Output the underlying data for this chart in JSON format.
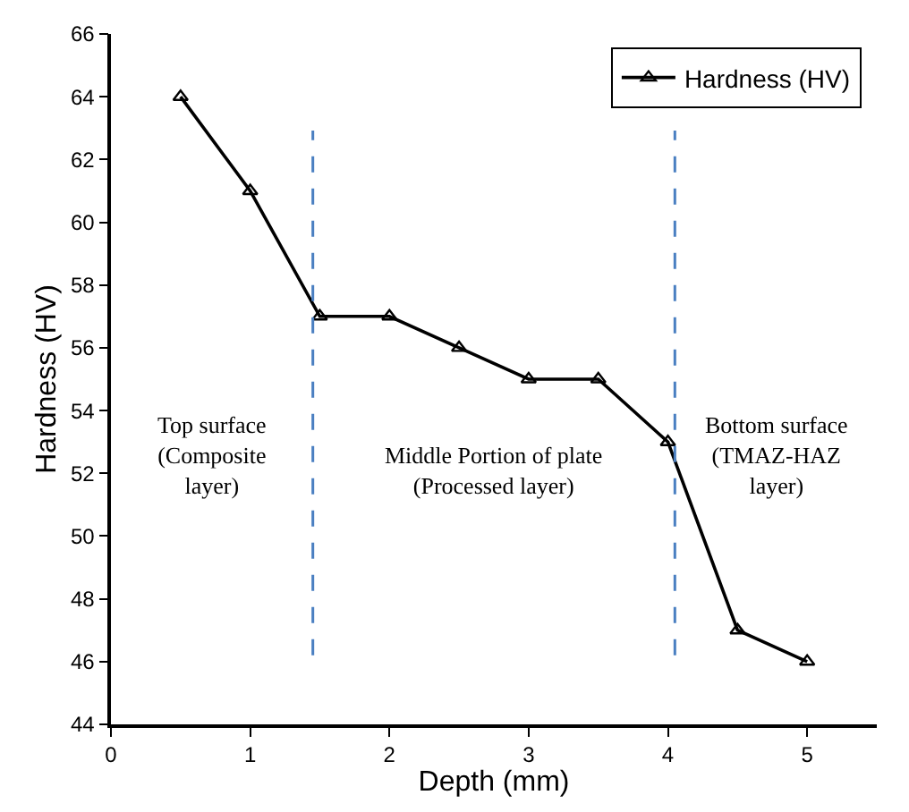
{
  "chart_data": {
    "type": "line",
    "xlabel": "Depth (mm)",
    "ylabel": "Hardness (HV)",
    "x": [
      0.5,
      1,
      1.5,
      2,
      2.5,
      3,
      3.5,
      4,
      4.5,
      5
    ],
    "series": [
      {
        "name": "Hardness (HV)",
        "color": "#000000",
        "values": [
          64,
          61,
          57,
          57,
          56,
          55,
          55,
          53,
          47,
          46
        ]
      }
    ],
    "xlim": [
      0,
      5.5
    ],
    "xticks": [
      0,
      1,
      2,
      3,
      4,
      5
    ],
    "ylim": [
      44,
      66
    ],
    "yticks": [
      44,
      46,
      48,
      50,
      52,
      54,
      56,
      58,
      60,
      62,
      64,
      66
    ],
    "ref_lines": [
      {
        "axis": "x",
        "value": 1.45,
        "color": "#4a7fc1",
        "line_style": "dashed"
      },
      {
        "axis": "x",
        "value": 4.05,
        "color": "#4a7fc1",
        "line_style": "dashed"
      }
    ],
    "annotations": [
      "Top surface\n(Composite\nlayer)",
      "Middle Portion of plate\n(Processed layer)",
      "Bottom surface\n(TMAZ-HAZ\nlayer)"
    ],
    "legend": "top right",
    "marker": "triangle",
    "line_style": "solid"
  }
}
